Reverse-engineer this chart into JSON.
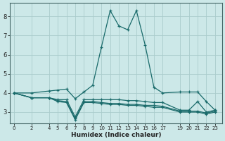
{
  "xlabel": "Humidex (Indice chaleur)",
  "bg_color": "#cce8e8",
  "grid_color": "#aacccc",
  "line_color": "#1a6b6b",
  "xticks": [
    0,
    2,
    4,
    5,
    6,
    7,
    8,
    9,
    10,
    11,
    12,
    13,
    14,
    15,
    16,
    17,
    19,
    20,
    21,
    22,
    23
  ],
  "yticks": [
    3,
    4,
    5,
    6,
    7,
    8
  ],
  "ylim": [
    2.4,
    8.7
  ],
  "xlim": [
    -0.5,
    23.8
  ],
  "lines": [
    [
      0,
      4.0,
      2,
      4.0,
      4,
      4.1,
      5,
      4.15,
      6,
      4.2,
      7,
      3.7,
      8,
      4.05,
      9,
      4.4,
      10,
      6.4,
      11,
      8.3,
      12,
      7.5,
      13,
      7.3,
      14,
      8.3,
      15,
      6.5,
      16,
      4.3,
      17,
      4.0,
      19,
      4.05,
      20,
      4.05,
      21,
      4.05,
      22,
      3.55,
      23,
      3.1
    ],
    [
      0,
      4.0,
      2,
      3.75,
      4,
      3.75,
      5,
      3.65,
      6,
      3.65,
      7,
      2.75,
      8,
      3.65,
      9,
      3.65,
      10,
      3.65,
      11,
      3.65,
      12,
      3.65,
      13,
      3.6,
      14,
      3.6,
      15,
      3.55,
      16,
      3.5,
      17,
      3.5,
      19,
      3.1,
      20,
      3.1,
      21,
      3.55,
      22,
      3.0,
      23,
      3.1
    ],
    [
      0,
      4.0,
      2,
      3.75,
      4,
      3.75,
      5,
      3.6,
      6,
      3.55,
      7,
      2.65,
      8,
      3.55,
      9,
      3.55,
      10,
      3.5,
      11,
      3.45,
      12,
      3.45,
      13,
      3.4,
      14,
      3.4,
      15,
      3.35,
      16,
      3.35,
      17,
      3.3,
      19,
      3.05,
      20,
      3.05,
      21,
      3.05,
      22,
      2.95,
      23,
      3.05
    ],
    [
      0,
      4.0,
      2,
      3.75,
      4,
      3.75,
      5,
      3.55,
      6,
      3.5,
      7,
      2.6,
      8,
      3.5,
      9,
      3.5,
      10,
      3.45,
      11,
      3.4,
      12,
      3.4,
      13,
      3.35,
      14,
      3.35,
      15,
      3.3,
      16,
      3.25,
      17,
      3.25,
      19,
      3.0,
      20,
      3.0,
      21,
      3.0,
      22,
      2.9,
      23,
      3.0
    ]
  ]
}
